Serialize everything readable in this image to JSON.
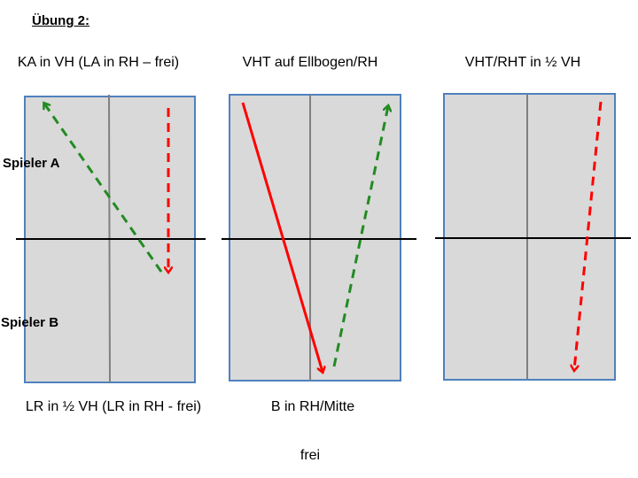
{
  "title": "Übung 2:",
  "columns": [
    {
      "label": "KA in VH (LA in RH – frei)"
    },
    {
      "label": "VHT auf Ellbogen/RH"
    },
    {
      "label": "VHT/RHT in ½  VH"
    }
  ],
  "players": {
    "a": "Spieler A",
    "b": "Spieler B"
  },
  "bottom": {
    "left": "LR in ½ VH (LR in RH - frei)",
    "middle": "B in RH/Mitte",
    "center": "frei"
  },
  "colors": {
    "table_fill": "#d9d9d9",
    "table_border": "#4f81bd",
    "center_line": "#808080",
    "net": "#000000",
    "red": "#ff0000",
    "green": "#228b22"
  },
  "strokes": [
    {
      "table": "left",
      "type": "dashed",
      "color": "green"
    },
    {
      "table": "left",
      "type": "dashed",
      "color": "red"
    },
    {
      "table": "middle",
      "type": "solid",
      "color": "red"
    },
    {
      "table": "middle",
      "type": "dashed",
      "color": "green"
    },
    {
      "table": "right",
      "type": "dashed",
      "color": "red"
    }
  ]
}
